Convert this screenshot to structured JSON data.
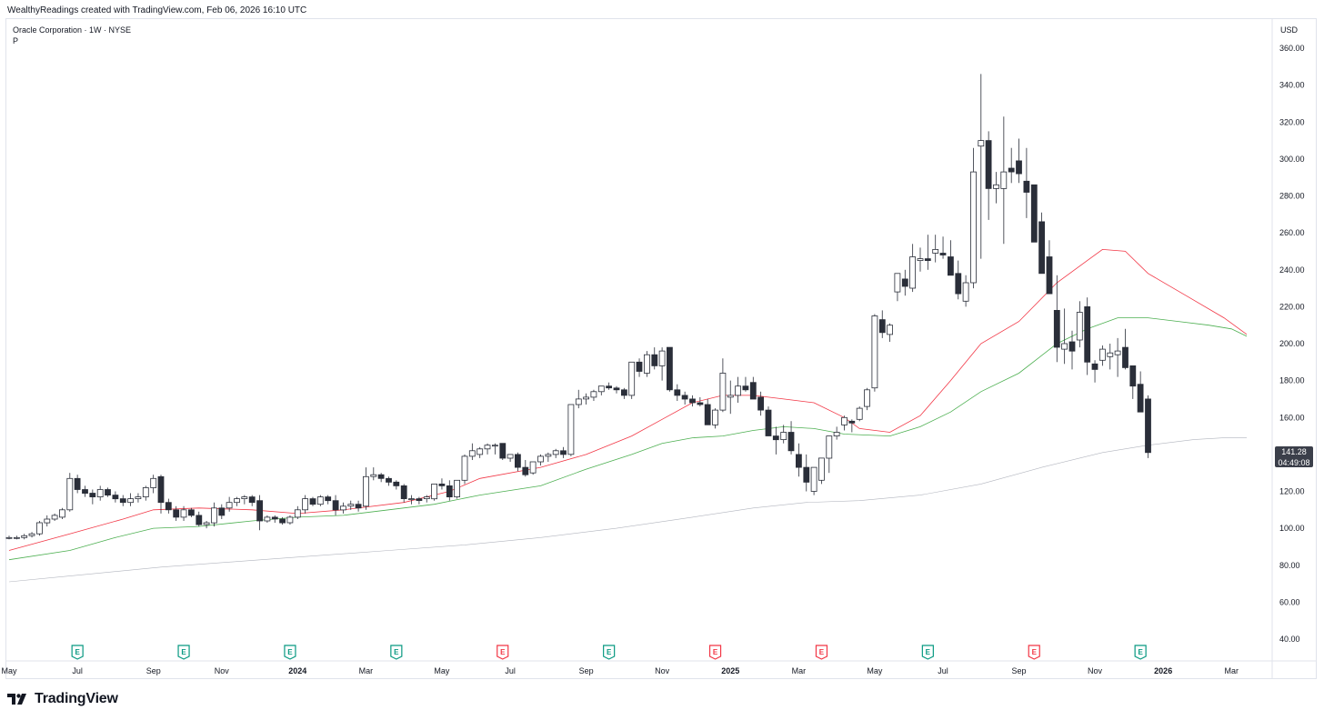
{
  "header": {
    "attribution": "WealthyReadings created with TradingView.com, Feb 06, 2026 16:10 UTC"
  },
  "symbol": {
    "name": "Oracle Corporation · 1W · NYSE",
    "sub": "P"
  },
  "currency": "USD",
  "last_price": {
    "price": "141.28",
    "countdown": "04:49:08"
  },
  "footer": {
    "brand": "TradingView"
  },
  "colors": {
    "up_fill": "#ffffff",
    "down_fill": "#2a2e39",
    "wick": "#2a2e39",
    "ma_fast": "#f23645",
    "ma_mid": "#4caf50",
    "ma_slow": "#b2b5be",
    "earnings_green": "#089981",
    "earnings_red": "#f23645"
  },
  "chart_data": {
    "type": "candlestick",
    "title": "Oracle Corporation · 1W · NYSE",
    "ylabel": "USD",
    "ylim": [
      30,
      365
    ],
    "y_ticks": [
      40,
      60,
      80,
      100,
      120,
      140,
      160,
      180,
      200,
      220,
      240,
      260,
      280,
      300,
      320,
      340,
      360
    ],
    "y_tick_labels": [
      "40.00",
      "60.00",
      "80.00",
      "100.00",
      "120.00",
      "140.00",
      "160.00",
      "180.00",
      "200.00",
      "220.00",
      "240.00",
      "260.00",
      "280.00",
      "300.00",
      "320.00",
      "340.00",
      "360.00"
    ],
    "x_labels": [
      "May",
      "Jul",
      "Sep",
      "Nov",
      "2024",
      "Mar",
      "May",
      "Jul",
      "Sep",
      "Nov",
      "2025",
      "Mar",
      "May",
      "Jul",
      "Sep",
      "Nov",
      "2026",
      "Mar"
    ],
    "x_label_bold": [
      "2024",
      "2025",
      "2026"
    ],
    "x_label_weeks": [
      0,
      9,
      19,
      28,
      38,
      47,
      57,
      66,
      76,
      86,
      95,
      104,
      114,
      123,
      133,
      143,
      152,
      161
    ],
    "candles": [
      [
        95,
        96,
        94,
        95
      ],
      [
        95,
        96,
        94,
        95
      ],
      [
        95,
        97,
        94,
        96
      ],
      [
        96,
        98,
        95,
        97
      ],
      [
        97,
        104,
        96,
        103
      ],
      [
        103,
        107,
        101,
        105
      ],
      [
        105,
        108,
        104,
        107
      ],
      [
        106,
        111,
        105,
        110
      ],
      [
        110,
        130,
        109,
        127
      ],
      [
        127,
        129,
        119,
        121
      ],
      [
        121,
        123,
        117,
        119
      ],
      [
        119,
        121,
        113,
        117
      ],
      [
        117,
        123,
        115,
        121
      ],
      [
        121,
        122,
        117,
        118
      ],
      [
        118,
        120,
        114,
        116
      ],
      [
        116,
        118,
        112,
        114
      ],
      [
        114,
        119,
        112,
        116
      ],
      [
        116,
        119,
        114,
        117
      ],
      [
        117,
        123,
        115,
        122
      ],
      [
        122,
        129,
        119,
        127
      ],
      [
        128,
        129,
        108,
        114
      ],
      [
        114,
        116,
        108,
        110
      ],
      [
        110,
        112,
        104,
        106
      ],
      [
        106,
        112,
        104,
        110
      ],
      [
        110,
        111,
        106,
        107
      ],
      [
        107,
        109,
        101,
        102
      ],
      [
        102,
        104,
        100,
        103
      ],
      [
        103,
        114,
        101,
        111
      ],
      [
        111,
        113,
        105,
        107
      ],
      [
        111,
        117,
        109,
        114
      ],
      [
        114,
        117,
        112,
        116
      ],
      [
        116,
        118,
        113,
        117
      ],
      [
        117,
        118,
        112,
        114
      ],
      [
        115,
        118,
        99,
        104
      ],
      [
        104,
        107,
        103,
        106
      ],
      [
        106,
        107,
        103,
        105
      ],
      [
        105,
        106,
        102,
        103
      ],
      [
        103,
        107,
        102,
        106
      ],
      [
        106,
        112,
        105,
        110
      ],
      [
        110,
        118,
        108,
        116
      ],
      [
        116,
        117,
        112,
        113
      ],
      [
        113,
        118,
        112,
        117
      ],
      [
        117,
        118,
        113,
        115
      ],
      [
        115,
        118,
        107,
        110
      ],
      [
        110,
        114,
        108,
        112
      ],
      [
        112,
        115,
        110,
        113
      ],
      [
        113,
        115,
        109,
        111
      ],
      [
        112,
        133,
        110,
        128
      ],
      [
        128,
        133,
        126,
        129
      ],
      [
        129,
        130,
        125,
        127
      ],
      [
        127,
        128,
        123,
        125
      ],
      [
        125,
        126,
        121,
        123
      ],
      [
        123,
        124,
        114,
        116
      ],
      [
        116,
        118,
        113,
        116
      ],
      [
        116,
        117,
        113,
        115
      ],
      [
        116,
        118,
        114,
        117
      ],
      [
        116,
        124,
        115,
        124
      ],
      [
        124,
        127,
        121,
        123
      ],
      [
        123,
        126,
        115,
        117
      ],
      [
        117,
        126,
        116,
        126
      ],
      [
        126,
        140,
        124,
        139
      ],
      [
        139,
        146,
        137,
        142
      ],
      [
        140,
        144,
        138,
        143
      ],
      [
        143,
        146,
        140,
        145
      ],
      [
        145,
        146,
        140,
        145
      ],
      [
        146,
        146,
        137,
        138
      ],
      [
        138,
        140,
        136,
        140
      ],
      [
        140,
        141,
        131,
        133
      ],
      [
        133,
        137,
        128,
        129
      ],
      [
        130,
        136,
        129,
        136
      ],
      [
        136,
        140,
        134,
        139
      ],
      [
        139,
        141,
        136,
        140
      ],
      [
        140,
        143,
        138,
        142
      ],
      [
        142,
        144,
        138,
        140
      ],
      [
        140,
        167,
        139,
        167
      ],
      [
        167,
        175,
        165,
        170
      ],
      [
        170,
        173,
        167,
        171
      ],
      [
        171,
        175,
        169,
        174
      ],
      [
        174,
        177,
        172,
        177
      ],
      [
        177,
        179,
        175,
        176
      ],
      [
        176,
        177,
        173,
        175
      ],
      [
        175,
        176,
        170,
        172
      ],
      [
        172,
        190,
        170,
        190
      ],
      [
        190,
        192,
        182,
        185
      ],
      [
        184,
        196,
        182,
        194
      ],
      [
        194,
        198,
        186,
        188
      ],
      [
        188,
        198,
        180,
        196
      ],
      [
        198,
        198,
        174,
        175
      ],
      [
        175,
        178,
        169,
        172
      ],
      [
        172,
        174,
        167,
        170
      ],
      [
        170,
        172,
        166,
        168
      ],
      [
        168,
        171,
        166,
        167
      ],
      [
        167,
        170,
        158,
        156
      ],
      [
        156,
        165,
        154,
        164
      ],
      [
        164,
        192,
        163,
        184
      ],
      [
        171,
        180,
        162,
        172
      ],
      [
        172,
        182,
        168,
        177
      ],
      [
        177,
        182,
        174,
        175
      ],
      [
        179,
        182,
        170,
        170
      ],
      [
        171,
        174,
        161,
        164
      ],
      [
        164,
        166,
        150,
        150
      ],
      [
        150,
        155,
        140,
        148
      ],
      [
        148,
        156,
        146,
        152
      ],
      [
        152,
        158,
        140,
        142
      ],
      [
        140,
        146,
        128,
        133
      ],
      [
        133,
        140,
        120,
        125
      ],
      [
        120,
        133,
        118,
        133
      ],
      [
        126,
        138,
        124,
        138
      ],
      [
        138,
        150,
        130,
        150
      ],
      [
        150,
        155,
        148,
        152
      ],
      [
        156,
        161,
        153,
        160
      ],
      [
        158,
        159,
        152,
        157
      ],
      [
        159,
        166,
        158,
        165
      ],
      [
        166,
        176,
        164,
        175
      ],
      [
        176,
        216,
        174,
        215
      ],
      [
        213,
        218,
        203,
        206
      ],
      [
        205,
        211,
        201,
        210
      ],
      [
        228,
        238,
        223,
        238
      ],
      [
        235,
        240,
        226,
        231
      ],
      [
        230,
        254,
        228,
        247
      ],
      [
        245,
        252,
        239,
        246
      ],
      [
        246,
        259,
        240,
        245
      ],
      [
        249,
        259,
        244,
        251
      ],
      [
        249,
        258,
        246,
        248
      ],
      [
        247,
        256,
        237,
        237
      ],
      [
        238,
        245,
        224,
        227
      ],
      [
        223,
        237,
        220,
        233
      ],
      [
        233,
        306,
        230,
        293
      ],
      [
        307,
        346,
        246,
        310
      ],
      [
        310,
        315,
        267,
        284
      ],
      [
        284,
        293,
        276,
        286
      ],
      [
        284,
        323,
        254,
        293
      ],
      [
        295,
        306,
        287,
        293
      ],
      [
        299,
        311,
        287,
        292
      ],
      [
        288,
        306,
        268,
        282
      ],
      [
        286,
        283,
        255,
        255
      ],
      [
        266,
        271,
        238,
        238
      ],
      [
        247,
        256,
        227,
        227
      ],
      [
        218,
        237,
        190,
        198
      ],
      [
        197,
        219,
        189,
        200
      ],
      [
        201,
        207,
        186,
        196
      ],
      [
        202,
        223,
        198,
        217
      ],
      [
        220,
        225,
        183,
        190
      ],
      [
        189,
        191,
        179,
        186
      ],
      [
        191,
        199,
        188,
        197
      ],
      [
        193,
        200,
        186,
        195
      ],
      [
        194,
        203,
        182,
        196
      ],
      [
        198,
        208,
        186,
        187
      ],
      [
        188,
        186,
        170,
        177
      ],
      [
        178,
        185,
        163,
        163
      ],
      [
        170,
        172,
        138,
        141
      ]
    ],
    "moving_averages": [
      {
        "name": "fast MA",
        "color": "#f23645",
        "width": 0.8,
        "points": [
          [
            0,
            88
          ],
          [
            8,
            97
          ],
          [
            15,
            105
          ],
          [
            19,
            110
          ],
          [
            25,
            111
          ],
          [
            32,
            110
          ],
          [
            38,
            108
          ],
          [
            44,
            110
          ],
          [
            52,
            114
          ],
          [
            58,
            120
          ],
          [
            62,
            127
          ],
          [
            70,
            133
          ],
          [
            76,
            140
          ],
          [
            82,
            150
          ],
          [
            86,
            159
          ],
          [
            90,
            168
          ],
          [
            94,
            172
          ],
          [
            98,
            172
          ],
          [
            102,
            170
          ],
          [
            106,
            168
          ],
          [
            110,
            160
          ],
          [
            112,
            154
          ],
          [
            116,
            152
          ],
          [
            120,
            161
          ],
          [
            124,
            180
          ],
          [
            128,
            200
          ],
          [
            133,
            212
          ],
          [
            138,
            233
          ],
          [
            142,
            245
          ],
          [
            144,
            251
          ],
          [
            147,
            250
          ],
          [
            150,
            238
          ],
          [
            155,
            226
          ],
          [
            160,
            214
          ],
          [
            163,
            205
          ]
        ]
      },
      {
        "name": "mid MA",
        "color": "#4caf50",
        "width": 0.8,
        "points": [
          [
            0,
            83
          ],
          [
            8,
            88
          ],
          [
            14,
            95
          ],
          [
            19,
            100
          ],
          [
            25,
            101
          ],
          [
            32,
            104
          ],
          [
            38,
            106
          ],
          [
            44,
            107
          ],
          [
            50,
            110
          ],
          [
            56,
            113
          ],
          [
            62,
            118
          ],
          [
            70,
            123
          ],
          [
            76,
            132
          ],
          [
            82,
            140
          ],
          [
            86,
            146
          ],
          [
            90,
            149
          ],
          [
            94,
            150
          ],
          [
            98,
            153
          ],
          [
            102,
            155
          ],
          [
            106,
            154
          ],
          [
            110,
            151
          ],
          [
            116,
            150
          ],
          [
            120,
            155
          ],
          [
            124,
            163
          ],
          [
            128,
            174
          ],
          [
            133,
            184
          ],
          [
            138,
            200
          ],
          [
            142,
            208
          ],
          [
            146,
            214
          ],
          [
            150,
            214
          ],
          [
            154,
            212
          ],
          [
            158,
            210
          ],
          [
            161,
            208
          ],
          [
            163,
            204
          ]
        ]
      },
      {
        "name": "slow MA",
        "color": "#b2b5be",
        "width": 0.6,
        "points": [
          [
            0,
            71
          ],
          [
            10,
            75
          ],
          [
            20,
            79
          ],
          [
            30,
            82
          ],
          [
            40,
            85
          ],
          [
            50,
            88
          ],
          [
            60,
            91
          ],
          [
            70,
            95
          ],
          [
            80,
            100
          ],
          [
            90,
            106
          ],
          [
            98,
            111
          ],
          [
            105,
            114
          ],
          [
            112,
            115
          ],
          [
            120,
            118
          ],
          [
            128,
            124
          ],
          [
            136,
            133
          ],
          [
            144,
            141
          ],
          [
            150,
            145
          ],
          [
            156,
            148
          ],
          [
            160,
            149
          ],
          [
            163,
            149
          ]
        ]
      }
    ],
    "earnings": [
      {
        "week": 9,
        "type": "E",
        "color": "green"
      },
      {
        "week": 23,
        "type": "E",
        "color": "green"
      },
      {
        "week": 37,
        "type": "E",
        "color": "green"
      },
      {
        "week": 51,
        "type": "E",
        "color": "green"
      },
      {
        "week": 65,
        "type": "E",
        "color": "red"
      },
      {
        "week": 79,
        "type": "E",
        "color": "green"
      },
      {
        "week": 93,
        "type": "E",
        "color": "red"
      },
      {
        "week": 107,
        "type": "E",
        "color": "red"
      },
      {
        "week": 121,
        "type": "E",
        "color": "green"
      },
      {
        "week": 135,
        "type": "E",
        "color": "red"
      },
      {
        "week": 149,
        "type": "E",
        "color": "green"
      }
    ]
  }
}
